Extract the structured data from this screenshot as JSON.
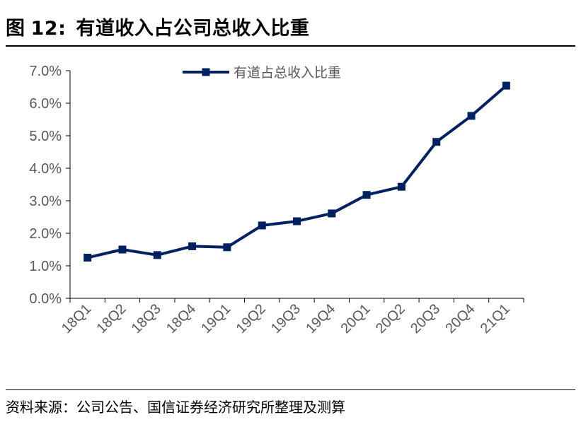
{
  "figure": {
    "label": "图",
    "number": "12:",
    "title": "有道收入占公司总收入比重"
  },
  "source_note": "资料来源：公司公告、国信证券经济研究所整理及测算",
  "colors": {
    "series": "#002060",
    "axis": "#000000",
    "tick_text": "#595959"
  },
  "chart_data": {
    "type": "line",
    "title": "有道收入占公司总收入比重",
    "categories": [
      "18Q1",
      "18Q2",
      "18Q3",
      "18Q4",
      "19Q1",
      "19Q2",
      "19Q3",
      "19Q4",
      "20Q1",
      "20Q2",
      "20Q3",
      "20Q4",
      "21Q1"
    ],
    "series": [
      {
        "name": "有道占总收入比重",
        "marker": "square",
        "values": [
          0.0125,
          0.015,
          0.0133,
          0.016,
          0.0157,
          0.0224,
          0.0237,
          0.0261,
          0.0318,
          0.0343,
          0.0481,
          0.0561,
          0.0654
        ]
      }
    ],
    "y_ticks": [
      "0.0%",
      "1.0%",
      "2.0%",
      "3.0%",
      "4.0%",
      "5.0%",
      "6.0%",
      "7.0%"
    ],
    "ylim": [
      0,
      0.07
    ],
    "xlabel": "",
    "ylabel": "",
    "grid": false,
    "legend_position": "top-center"
  }
}
